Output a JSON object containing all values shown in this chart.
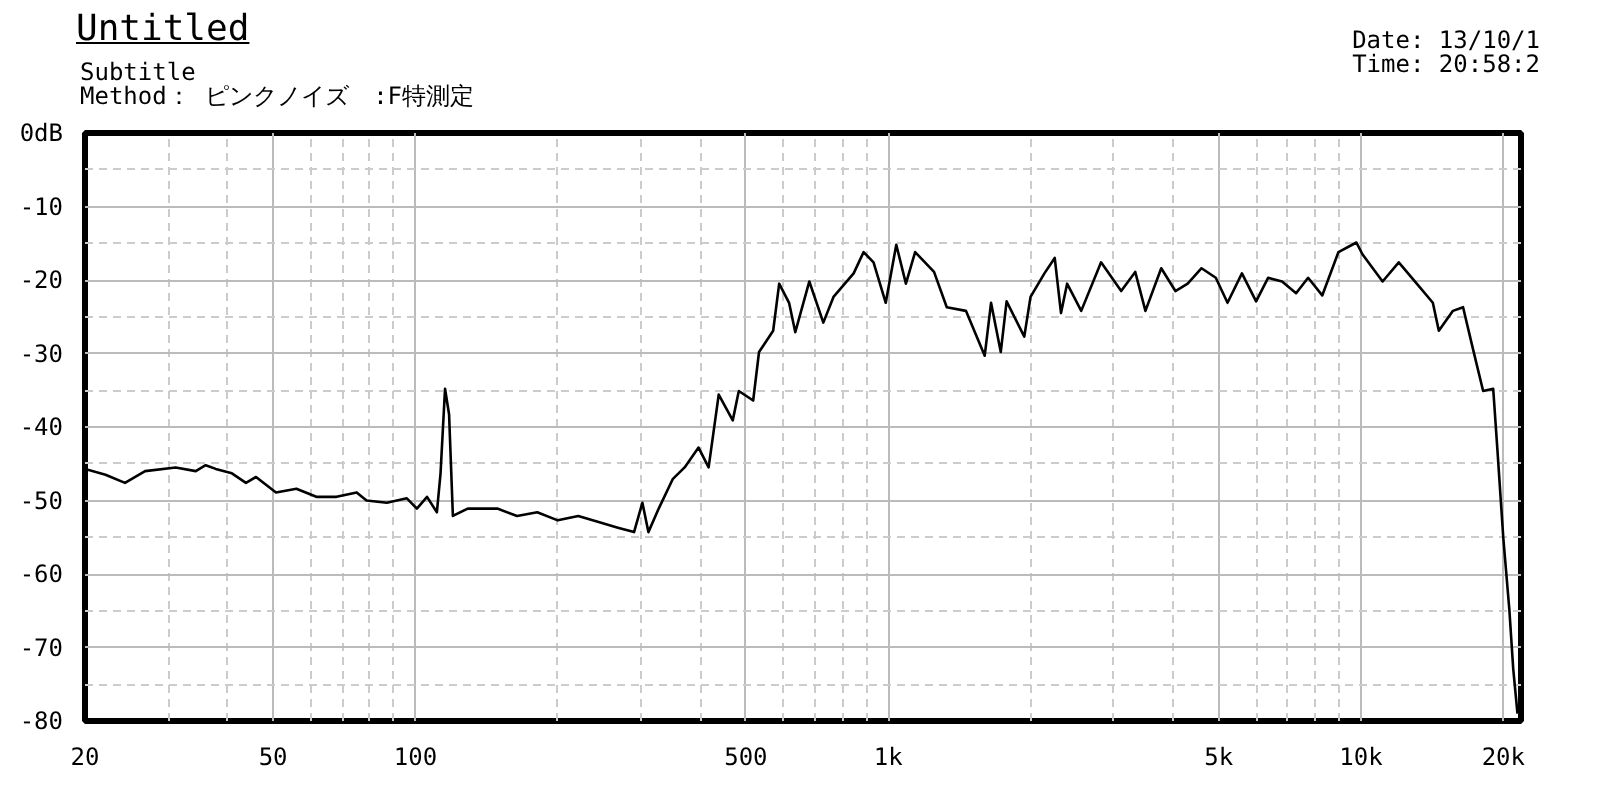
{
  "chart_data": {
    "type": "line",
    "title": "Untitled",
    "subtitle": "Subtitle",
    "annotations": [
      "Method： ピンクノイズ　:F特測定",
      "Date: 13/10/1",
      "Time: 20:58:2"
    ],
    "log": "x",
    "xlim": [
      20,
      21800
    ],
    "ylim": [
      -80,
      0
    ],
    "xticks": [
      20,
      50,
      100,
      500,
      {
        "value": 1000,
        "label": "1k"
      },
      {
        "value": 5000,
        "label": "5k"
      },
      {
        "value": 10000,
        "label": "10k"
      },
      {
        "value": 20000,
        "label": "20k"
      }
    ],
    "yticks": [
      -80,
      -70,
      -60,
      -50,
      -40,
      -30,
      -20,
      -10,
      {
        "value": 0,
        "label": "0dB"
      }
    ],
    "grid": true,
    "line_style": "solid",
    "series": [
      {
        "color": "#000000",
        "x": [
          20,
          22.1,
          24.3,
          26.8,
          31.1,
          34.3,
          36.0,
          37.8,
          40.9,
          43.8,
          46.0,
          50.7,
          56.0,
          61.7,
          68.1,
          75.1,
          78.8,
          87.0,
          95.9,
          100.7,
          105.8,
          111,
          113,
          115.5,
          117.8,
          120,
          129,
          149,
          164,
          181,
          200,
          221,
          243,
          268,
          290,
          302,
          311,
          327,
          350,
          371,
          397,
          417,
          438,
          469,
          483,
          518,
          533,
          571,
          588,
          617,
          636,
          681,
          729,
          766,
          845,
          887,
          931,
          988,
          1040,
          1090,
          1140,
          1250,
          1330,
          1460,
          1600,
          1650,
          1730,
          1780,
          1940,
          2000,
          2140,
          2250,
          2320,
          2390,
          2560,
          2820,
          3110,
          3330,
          3500,
          3780,
          4050,
          4300,
          4600,
          4930,
          5220,
          5600,
          6000,
          6360,
          6810,
          7290,
          7730,
          8280,
          8960,
          9780,
          10070,
          11110,
          12020,
          13120,
          14190,
          14610,
          15650,
          16440,
          17270,
          18130,
          19040,
          19420,
          20000,
          20600,
          20990,
          21430
        ],
        "values": [
          -45.7,
          -46.5,
          -47.6,
          -46.0,
          -45.5,
          -46.0,
          -45.2,
          -45.7,
          -46.3,
          -47.6,
          -46.8,
          -48.9,
          -48.4,
          -49.5,
          -49.5,
          -48.9,
          -50.0,
          -50.3,
          -49.7,
          -51.1,
          -49.5,
          -51.6,
          -46.3,
          -34.8,
          -38.3,
          -52.1,
          -51.1,
          -51.1,
          -52.1,
          -51.6,
          -52.7,
          -52.1,
          -52.9,
          -53.7,
          -54.3,
          -50.3,
          -54.3,
          -51.1,
          -47.1,
          -45.5,
          -42.8,
          -45.5,
          -35.6,
          -39.1,
          -35.1,
          -36.4,
          -29.8,
          -26.9,
          -20.5,
          -23.1,
          -27.1,
          -20.2,
          -25.8,
          -22.3,
          -19.1,
          -16.2,
          -17.6,
          -23.1,
          -15.2,
          -20.5,
          -16.2,
          -18.9,
          -23.7,
          -24.2,
          -30.3,
          -23.1,
          -29.8,
          -22.9,
          -27.7,
          -22.3,
          -19.1,
          -17.0,
          -24.5,
          -20.5,
          -24.2,
          -17.6,
          -21.5,
          -18.9,
          -24.2,
          -18.4,
          -21.5,
          -20.5,
          -18.4,
          -19.7,
          -23.1,
          -19.1,
          -22.9,
          -19.7,
          -20.2,
          -21.8,
          -19.7,
          -22.1,
          -16.2,
          -14.9,
          -16.5,
          -20.2,
          -17.6,
          -20.5,
          -23.1,
          -26.9,
          -24.2,
          -23.7,
          -29.5,
          -35.1,
          -34.8,
          -42.8,
          -55.1,
          -64.9,
          -72.9,
          -79.0
        ]
      }
    ]
  }
}
